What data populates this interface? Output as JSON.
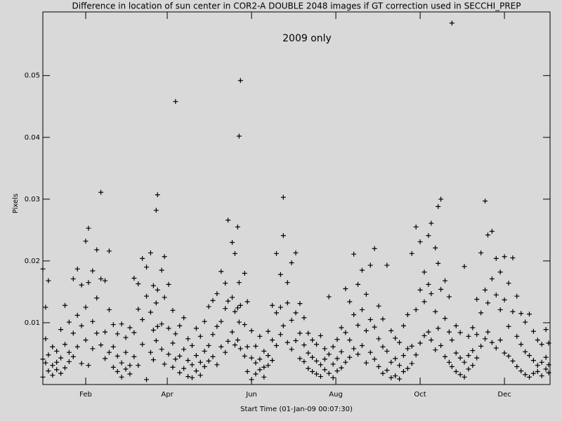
{
  "chart_data": {
    "type": "scatter",
    "title": "Difference in location of sun center in COR2-A DOUBLE 2048 images if GT correction used in SECCHI_PREP",
    "annotation": "2009 only",
    "xlabel": "Start Time (01-Jan-09 00:07:30)",
    "ylabel": "Pixels",
    "color": "#000000",
    "marker": "plus",
    "xlim": [
      0,
      367
    ],
    "ylim": [
      0,
      0.0603
    ],
    "xticks": [
      {
        "value": 31,
        "label": "Feb"
      },
      {
        "value": 90,
        "label": "Apr"
      },
      {
        "value": 151,
        "label": "Jun"
      },
      {
        "value": 212,
        "label": "Aug"
      },
      {
        "value": 273,
        "label": "Oct"
      },
      {
        "value": 334,
        "label": "Dec"
      }
    ],
    "yticks": [
      0.01,
      0.02,
      0.03,
      0.04,
      0.05
    ],
    "grid": false,
    "x": [
      0,
      0,
      0,
      2,
      2,
      2,
      4,
      4,
      4,
      7,
      7,
      7,
      10,
      10,
      10,
      13,
      13,
      13,
      16,
      16,
      16,
      19,
      19,
      19,
      22,
      22,
      22,
      25,
      25,
      25,
      28,
      28,
      28,
      31,
      31,
      31,
      33,
      33,
      33,
      36,
      36,
      36,
      39,
      39,
      39,
      42,
      42,
      42,
      45,
      45,
      45,
      48,
      48,
      48,
      51,
      51,
      51,
      54,
      54,
      54,
      57,
      57,
      57,
      60,
      60,
      60,
      63,
      63,
      63,
      66,
      66,
      66,
      69,
      69,
      69,
      72,
      72,
      72,
      75,
      75,
      75,
      78,
      78,
      78,
      80,
      80,
      80,
      82,
      82,
      82,
      83,
      83,
      83,
      86,
      86,
      86,
      88,
      88,
      88,
      91,
      91,
      91,
      94,
      94,
      94,
      96,
      96,
      96,
      99,
      99,
      99,
      102,
      102,
      102,
      105,
      105,
      105,
      108,
      108,
      108,
      111,
      111,
      111,
      114,
      114,
      114,
      117,
      117,
      117,
      120,
      120,
      120,
      123,
      123,
      123,
      126,
      126,
      126,
      129,
      129,
      129,
      132,
      132,
      132,
      134,
      134,
      134,
      137,
      137,
      137,
      139,
      139,
      139,
      141,
      141,
      141,
      142,
      142,
      142,
      143,
      143,
      143,
      146,
      146,
      146,
      148,
      148,
      148,
      151,
      151,
      151,
      154,
      154,
      154,
      157,
      157,
      157,
      160,
      160,
      160,
      163,
      163,
      163,
      166,
      166,
      166,
      169,
      169,
      169,
      172,
      172,
      172,
      174,
      174,
      174,
      177,
      177,
      177,
      180,
      180,
      180,
      183,
      183,
      183,
      186,
      186,
      186,
      189,
      189,
      189,
      192,
      192,
      192,
      195,
      195,
      195,
      198,
      198,
      198,
      201,
      201,
      201,
      204,
      204,
      204,
      207,
      207,
      207,
      210,
      210,
      210,
      213,
      213,
      213,
      216,
      216,
      216,
      219,
      219,
      219,
      222,
      222,
      222,
      225,
      225,
      225,
      228,
      228,
      228,
      231,
      231,
      231,
      234,
      234,
      234,
      237,
      237,
      237,
      240,
      240,
      240,
      243,
      243,
      243,
      246,
      246,
      246,
      249,
      249,
      249,
      252,
      252,
      252,
      255,
      255,
      255,
      258,
      258,
      258,
      261,
      261,
      261,
      264,
      264,
      264,
      267,
      267,
      267,
      270,
      270,
      270,
      273,
      273,
      273,
      276,
      276,
      276,
      279,
      279,
      279,
      281,
      281,
      281,
      284,
      284,
      284,
      286,
      286,
      286,
      288,
      288,
      288,
      291,
      291,
      291,
      294,
      294,
      294,
      296,
      296,
      296,
      299,
      299,
      299,
      302,
      302,
      302,
      305,
      305,
      305,
      308,
      308,
      308,
      311,
      311,
      311,
      314,
      314,
      314,
      317,
      317,
      317,
      320,
      320,
      320,
      322,
      322,
      322,
      325,
      325,
      325,
      328,
      328,
      328,
      331,
      331,
      331,
      334,
      334,
      334,
      337,
      337,
      337,
      340,
      340,
      340,
      343,
      343,
      343,
      346,
      346,
      346,
      349,
      349,
      349,
      352,
      352,
      352,
      355,
      355,
      355,
      358,
      358,
      358,
      361,
      361,
      361,
      364,
      364,
      364,
      366,
      366,
      366
    ],
    "values": [
      0.0187,
      0.0041,
      0.0012,
      0.0125,
      0.0035,
      0.0074,
      0.0168,
      0.0022,
      0.0048,
      0.0031,
      0.0061,
      0.0015,
      0.0054,
      0.0024,
      0.0036,
      0.0089,
      0.0043,
      0.0018,
      0.0128,
      0.0065,
      0.0027,
      0.0101,
      0.0037,
      0.0052,
      0.0171,
      0.0083,
      0.0045,
      0.0187,
      0.0112,
      0.0061,
      0.0161,
      0.0095,
      0.0034,
      0.0232,
      0.0125,
      0.0072,
      0.0253,
      0.0165,
      0.0031,
      0.0184,
      0.0102,
      0.0058,
      0.0218,
      0.014,
      0.0083,
      0.0311,
      0.0171,
      0.0064,
      0.0168,
      0.0085,
      0.0042,
      0.0216,
      0.0121,
      0.0052,
      0.0097,
      0.0061,
      0.0028,
      0.0082,
      0.0046,
      0.0021,
      0.0098,
      0.0035,
      0.0012,
      0.0076,
      0.0052,
      0.0025,
      0.0092,
      0.0031,
      0.0017,
      0.0172,
      0.0084,
      0.0045,
      0.0163,
      0.0122,
      0.0031,
      0.0204,
      0.0105,
      0.0065,
      0.019,
      0.0143,
      0.0008,
      0.0213,
      0.0117,
      0.0052,
      0.016,
      0.0088,
      0.004,
      0.0282,
      0.0132,
      0.0071,
      0.0307,
      0.0153,
      0.0094,
      0.0185,
      0.0098,
      0.0057,
      0.0207,
      0.0141,
      0.0033,
      0.0162,
      0.0091,
      0.0049,
      0.012,
      0.0067,
      0.0028,
      0.0458,
      0.0082,
      0.0041,
      0.0095,
      0.0046,
      0.0019,
      0.0108,
      0.0057,
      0.0026,
      0.0074,
      0.0039,
      0.0013,
      0.0063,
      0.0032,
      0.0011,
      0.0091,
      0.0047,
      0.0022,
      0.0078,
      0.0036,
      0.0015,
      0.0102,
      0.0054,
      0.0029,
      0.0126,
      0.0063,
      0.0038,
      0.0136,
      0.0081,
      0.0045,
      0.0147,
      0.0094,
      0.0032,
      0.0183,
      0.0102,
      0.0061,
      0.0164,
      0.0123,
      0.0052,
      0.0266,
      0.0135,
      0.007,
      0.023,
      0.0141,
      0.0085,
      0.0212,
      0.0118,
      0.0064,
      0.0255,
      0.0124,
      0.0072,
      0.0402,
      0.0165,
      0.0101,
      0.0492,
      0.0128,
      0.0058,
      0.018,
      0.0097,
      0.0046,
      0.0134,
      0.0061,
      0.0021,
      0.0087,
      0.0043,
      0.0008,
      0.0062,
      0.0035,
      0.0017,
      0.0078,
      0.0041,
      0.0024,
      0.0054,
      0.0028,
      0.0012,
      0.0086,
      0.0047,
      0.0031,
      0.0128,
      0.0072,
      0.0039,
      0.0212,
      0.0116,
      0.0063,
      0.0178,
      0.0125,
      0.0081,
      0.0303,
      0.0241,
      0.0095,
      0.0165,
      0.0132,
      0.0068,
      0.0197,
      0.0104,
      0.0057,
      0.0213,
      0.0116,
      0.0071,
      0.0131,
      0.0083,
      0.0042,
      0.0108,
      0.0064,
      0.0037,
      0.0083,
      0.0051,
      0.0026,
      0.0072,
      0.0044,
      0.0021,
      0.0065,
      0.0038,
      0.0017,
      0.0079,
      0.0032,
      0.0013,
      0.0058,
      0.0041,
      0.0024,
      0.0142,
      0.0049,
      0.0018,
      0.0061,
      0.0033,
      0.0011,
      0.0073,
      0.0042,
      0.0022,
      0.0092,
      0.0053,
      0.0027,
      0.0155,
      0.0084,
      0.0036,
      0.0134,
      0.0072,
      0.0044,
      0.0211,
      0.0113,
      0.0058,
      0.0162,
      0.0096,
      0.0049,
      0.0185,
      0.0121,
      0.0063,
      0.0146,
      0.0087,
      0.0035,
      0.0193,
      0.0105,
      0.0052,
      0.022,
      0.0093,
      0.0041,
      0.0127,
      0.0074,
      0.0029,
      0.0106,
      0.0061,
      0.0018,
      0.0193,
      0.0054,
      0.0023,
      0.0087,
      0.0036,
      0.0011,
      0.0075,
      0.0042,
      0.0014,
      0.0068,
      0.0031,
      0.0009,
      0.0095,
      0.0047,
      0.0021,
      0.0113,
      0.0058,
      0.0026,
      0.0212,
      0.0062,
      0.0034,
      0.0255,
      0.0121,
      0.0048,
      0.0231,
      0.0153,
      0.0067,
      0.0182,
      0.0134,
      0.0079,
      0.0241,
      0.0162,
      0.0085,
      0.0261,
      0.0147,
      0.0072,
      0.0221,
      0.0118,
      0.0056,
      0.0288,
      0.0196,
      0.0091,
      0.03,
      0.0154,
      0.0063,
      0.0168,
      0.0107,
      0.0045,
      0.0142,
      0.0085,
      0.0036,
      0.0585,
      0.0072,
      0.0029,
      0.0095,
      0.0051,
      0.0021,
      0.0084,
      0.0043,
      0.0016,
      0.0191,
      0.0036,
      0.0012,
      0.0078,
      0.0047,
      0.0025,
      0.0092,
      0.0055,
      0.0031,
      0.0138,
      0.0081,
      0.0043,
      0.0213,
      0.0116,
      0.0062,
      0.0297,
      0.0153,
      0.0074,
      0.0242,
      0.0132,
      0.0085,
      0.0248,
      0.0171,
      0.0068,
      0.0204,
      0.0145,
      0.0059,
      0.0182,
      0.0121,
      0.0072,
      0.0207,
      0.0137,
      0.0051,
      0.0164,
      0.0094,
      0.0046,
      0.0205,
      0.0118,
      0.0038,
      0.0143,
      0.0078,
      0.0029,
      0.0115,
      0.0065,
      0.0022,
      0.0101,
      0.0053,
      0.0016,
      0.0114,
      0.0047,
      0.0012,
      0.0086,
      0.0039,
      0.0018,
      0.0072,
      0.0031,
      0.0021,
      0.0065,
      0.0036,
      0.0014,
      0.0089,
      0.0044,
      0.0025,
      0.0067,
      0.0032,
      0.0019
    ]
  }
}
